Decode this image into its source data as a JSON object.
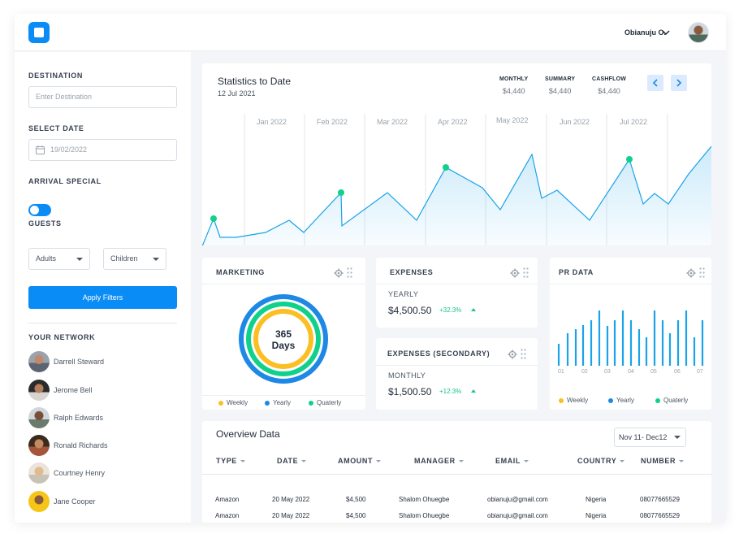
{
  "header": {
    "user_name": "Obianuju O."
  },
  "sidebar": {
    "destination_label": "DESTINATION",
    "destination_placeholder": "Enter Destination",
    "date_label": "SELECT DATE",
    "date_value": "19/02/2022",
    "arrival_label": "ARRIVAL SPECIAL",
    "arrival_on": true,
    "guests_label": "GUESTS",
    "adults_label": "Adults",
    "children_label": "Children",
    "apply_label": "Apply Filters",
    "network_label": "YOUR NETWORK",
    "network": [
      {
        "name": "Darrell Steward"
      },
      {
        "name": "Jerome Bell"
      },
      {
        "name": "Ralph Edwards"
      },
      {
        "name": "Ronald Richards"
      },
      {
        "name": "Courtney Henry"
      },
      {
        "name": "Jane Cooper"
      }
    ]
  },
  "stats": {
    "title": "Statistics to Date",
    "date": "12 Jul 2021",
    "metrics": [
      {
        "label": "MONTHLY",
        "value": "$4,440"
      },
      {
        "label": "SUMMARY",
        "value": "$4,440"
      },
      {
        "label": "CASHFLOW",
        "value": "$4,440"
      }
    ],
    "months": [
      "Jan 2022",
      "Feb 2022",
      "Mar 2022",
      "Apr 2022",
      "May 2022",
      "Jun 2022",
      "Jul 2022"
    ]
  },
  "marketing": {
    "title": "MARKETING",
    "center_line1": "365",
    "center_line2": "Days",
    "legend": [
      "Weekly",
      "Yearly",
      "Quaterly"
    ]
  },
  "expenses": {
    "title": "EXPENSES",
    "sub": "YEARLY",
    "value": "$4,500.50",
    "pct": "+32.3%"
  },
  "expenses2": {
    "title": "EXPENSES (SECONDARY)",
    "sub": "MONTHLY",
    "value": "$1,500.50",
    "pct": "+12.3%"
  },
  "pr": {
    "title": "PR DATA",
    "ticks": [
      "01",
      "02",
      "03",
      "04",
      "05",
      "06",
      "07"
    ],
    "legend": [
      "Weekly",
      "Yearly",
      "Quaterly"
    ]
  },
  "overview": {
    "title": "Overview Data",
    "range": "Nov 11- Dec12",
    "columns": [
      "TYPE",
      "DATE",
      "AMOUNT",
      "MANAGER",
      "EMAIL",
      "COUNTRY",
      "NUMBER"
    ],
    "rows": [
      [
        "Amazon",
        "20 May 2022",
        "$4,500",
        "Shalom Ohuegbe",
        "obianuju@gmail.com",
        "Nigeria",
        "08077665529"
      ],
      [
        "Amazon",
        "20 May 2022",
        "$4,500",
        "Shalom Ohuegbe",
        "obianuju@gmail.com",
        "Nigeria",
        "08077665529"
      ]
    ]
  },
  "colors": {
    "primary": "#0a8cf6",
    "weekly": "#fbbf24",
    "yearly": "#1e88e5",
    "quarterly": "#10d18c",
    "line": "#1aa3e8",
    "accent_dot": "#10d18c"
  }
}
